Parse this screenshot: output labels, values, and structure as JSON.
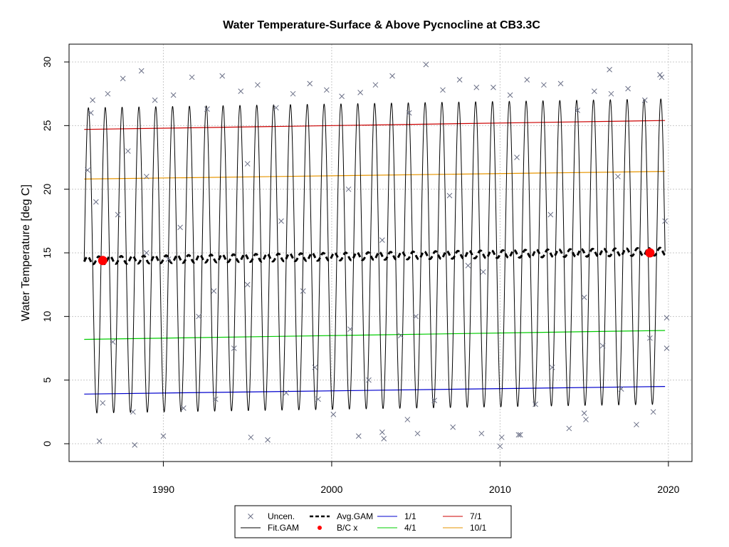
{
  "chart_data": {
    "type": "line",
    "title": "Water Temperature-Surface & Above Pycnocline at CB3.3C",
    "xlabel": "",
    "ylabel": "Water Temperature [deg C]",
    "xlim": [
      1984.4,
      2021.4
    ],
    "ylim": [
      -1.4,
      31.4
    ],
    "x_ticks": [
      1990,
      2000,
      2010,
      2020
    ],
    "y_ticks": [
      0,
      5,
      10,
      15,
      20,
      25,
      30
    ],
    "grid": true,
    "x_range": [
      1985.3,
      2019.8
    ],
    "fit_gam": {
      "name": "Fit.GAM",
      "color": "#000000",
      "mean_start": 14.4,
      "mean_end": 15.1,
      "amplitude": 12.0,
      "summer_peak_fraction": 0.55
    },
    "avg_gam": {
      "name": "Avg.GAM",
      "color": "#000000",
      "start": 14.4,
      "end": 15.1,
      "ripple": 0.3
    },
    "percentile_lines": [
      {
        "name": "1/1",
        "color": "#0000cc",
        "start": 3.9,
        "end": 4.5
      },
      {
        "name": "4/1",
        "color": "#00cc00",
        "start": 8.2,
        "end": 8.9
      },
      {
        "name": "7/1",
        "color": "#cc0000",
        "start": 24.7,
        "end": 25.4
      },
      {
        "name": "10/1",
        "color": "#e69500",
        "start": 20.8,
        "end": 21.4
      }
    ],
    "bc_points": {
      "name": "B/C x",
      "color": "#ff0000",
      "points": [
        [
          1986.4,
          14.4
        ],
        [
          2018.9,
          15.0
        ]
      ]
    },
    "uncensored": {
      "name": "Uncen.",
      "color": "#6a6f86",
      "points": [
        [
          1985.5,
          21.5
        ],
        [
          1985.7,
          26.0
        ],
        [
          1985.8,
          27.0
        ],
        [
          1986.0,
          19.0
        ],
        [
          1986.2,
          0.2
        ],
        [
          1986.4,
          3.2
        ],
        [
          1986.7,
          27.5
        ],
        [
          1987.3,
          18.0
        ],
        [
          1987.6,
          28.7
        ],
        [
          1987.9,
          23.0
        ],
        [
          1988.2,
          2.5
        ],
        [
          1988.3,
          -0.1
        ],
        [
          1988.7,
          29.3
        ],
        [
          1989.0,
          15.0
        ],
        [
          1989.5,
          27.0
        ],
        [
          1990.0,
          0.6
        ],
        [
          1990.3,
          14.5
        ],
        [
          1990.6,
          27.4
        ],
        [
          1991.2,
          2.8
        ],
        [
          1991.7,
          28.8
        ],
        [
          1992.1,
          10.0
        ],
        [
          1992.6,
          26.3
        ],
        [
          1993.1,
          3.5
        ],
        [
          1993.5,
          28.9
        ],
        [
          1994.2,
          7.5
        ],
        [
          1994.6,
          27.7
        ],
        [
          1995.0,
          12.5
        ],
        [
          1995.2,
          0.5
        ],
        [
          1995.6,
          28.2
        ],
        [
          1996.2,
          0.3
        ],
        [
          1996.7,
          26.4
        ],
        [
          1997.3,
          4.0
        ],
        [
          1997.7,
          27.5
        ],
        [
          1998.3,
          12.0
        ],
        [
          1998.7,
          28.3
        ],
        [
          1999.2,
          3.5
        ],
        [
          1999.7,
          27.8
        ],
        [
          2000.1,
          2.3
        ],
        [
          2000.6,
          27.3
        ],
        [
          2001.1,
          9.0
        ],
        [
          2001.6,
          0.6
        ],
        [
          2001.7,
          27.6
        ],
        [
          2002.2,
          5.0
        ],
        [
          2002.6,
          28.2
        ],
        [
          2003.0,
          0.9
        ],
        [
          2003.1,
          0.4
        ],
        [
          2003.6,
          28.9
        ],
        [
          2004.1,
          8.5
        ],
        [
          2004.5,
          1.9
        ],
        [
          2004.6,
          26.0
        ],
        [
          2005.1,
          0.8
        ],
        [
          2005.6,
          29.8
        ],
        [
          2006.1,
          3.4
        ],
        [
          2006.6,
          27.8
        ],
        [
          2007.2,
          1.3
        ],
        [
          2007.6,
          28.6
        ],
        [
          2008.1,
          14.0
        ],
        [
          2008.6,
          28.0
        ],
        [
          2008.9,
          0.8
        ],
        [
          2009.6,
          28.0
        ],
        [
          2010.0,
          -0.2
        ],
        [
          2010.1,
          0.5
        ],
        [
          2010.6,
          27.4
        ],
        [
          2011.1,
          0.7
        ],
        [
          2011.2,
          0.7
        ],
        [
          2011.6,
          28.6
        ],
        [
          2012.1,
          3.1
        ],
        [
          2012.6,
          28.2
        ],
        [
          2013.1,
          6.0
        ],
        [
          2013.6,
          28.3
        ],
        [
          2014.1,
          1.2
        ],
        [
          2014.6,
          26.2
        ],
        [
          2015.0,
          2.4
        ],
        [
          2015.1,
          1.9
        ],
        [
          2015.6,
          27.7
        ],
        [
          2016.1,
          7.7
        ],
        [
          2016.5,
          29.4
        ],
        [
          2016.6,
          27.5
        ],
        [
          2017.2,
          4.3
        ],
        [
          2017.6,
          27.9
        ],
        [
          2018.1,
          1.5
        ],
        [
          2018.6,
          27.0
        ],
        [
          2018.9,
          8.3
        ],
        [
          2019.1,
          2.5
        ],
        [
          2019.5,
          29.0
        ],
        [
          2019.6,
          28.8
        ],
        [
          2019.8,
          17.5
        ],
        [
          2019.9,
          9.9
        ],
        [
          2019.9,
          7.5
        ],
        [
          1987.0,
          8.0
        ],
        [
          1989.0,
          21.0
        ],
        [
          1991.0,
          17.0
        ],
        [
          1993.0,
          12.0
        ],
        [
          1995.0,
          22.0
        ],
        [
          1997.0,
          17.5
        ],
        [
          1999.0,
          6.0
        ],
        [
          2001.0,
          20.0
        ],
        [
          2003.0,
          16.0
        ],
        [
          2005.0,
          10.0
        ],
        [
          2007.0,
          19.5
        ],
        [
          2009.0,
          13.5
        ],
        [
          2011.0,
          22.5
        ],
        [
          2013.0,
          18.0
        ],
        [
          2015.0,
          11.5
        ],
        [
          2017.0,
          21.0
        ]
      ]
    },
    "legend": {
      "placement": "bottom-center",
      "items": [
        {
          "label": "Uncen.",
          "kind": "cross",
          "color": "#6a6f86"
        },
        {
          "label": "Avg.GAM",
          "kind": "dashed",
          "color": "#000000"
        },
        {
          "label": "1/1",
          "kind": "line",
          "color": "#0000cc"
        },
        {
          "label": "7/1",
          "kind": "line",
          "color": "#cc0000"
        },
        {
          "label": "Fit.GAM",
          "kind": "line",
          "color": "#000000"
        },
        {
          "label": "B/C x",
          "kind": "dot",
          "color": "#ff0000"
        },
        {
          "label": "4/1",
          "kind": "line",
          "color": "#00cc00"
        },
        {
          "label": "10/1",
          "kind": "line",
          "color": "#e69500"
        }
      ]
    }
  }
}
